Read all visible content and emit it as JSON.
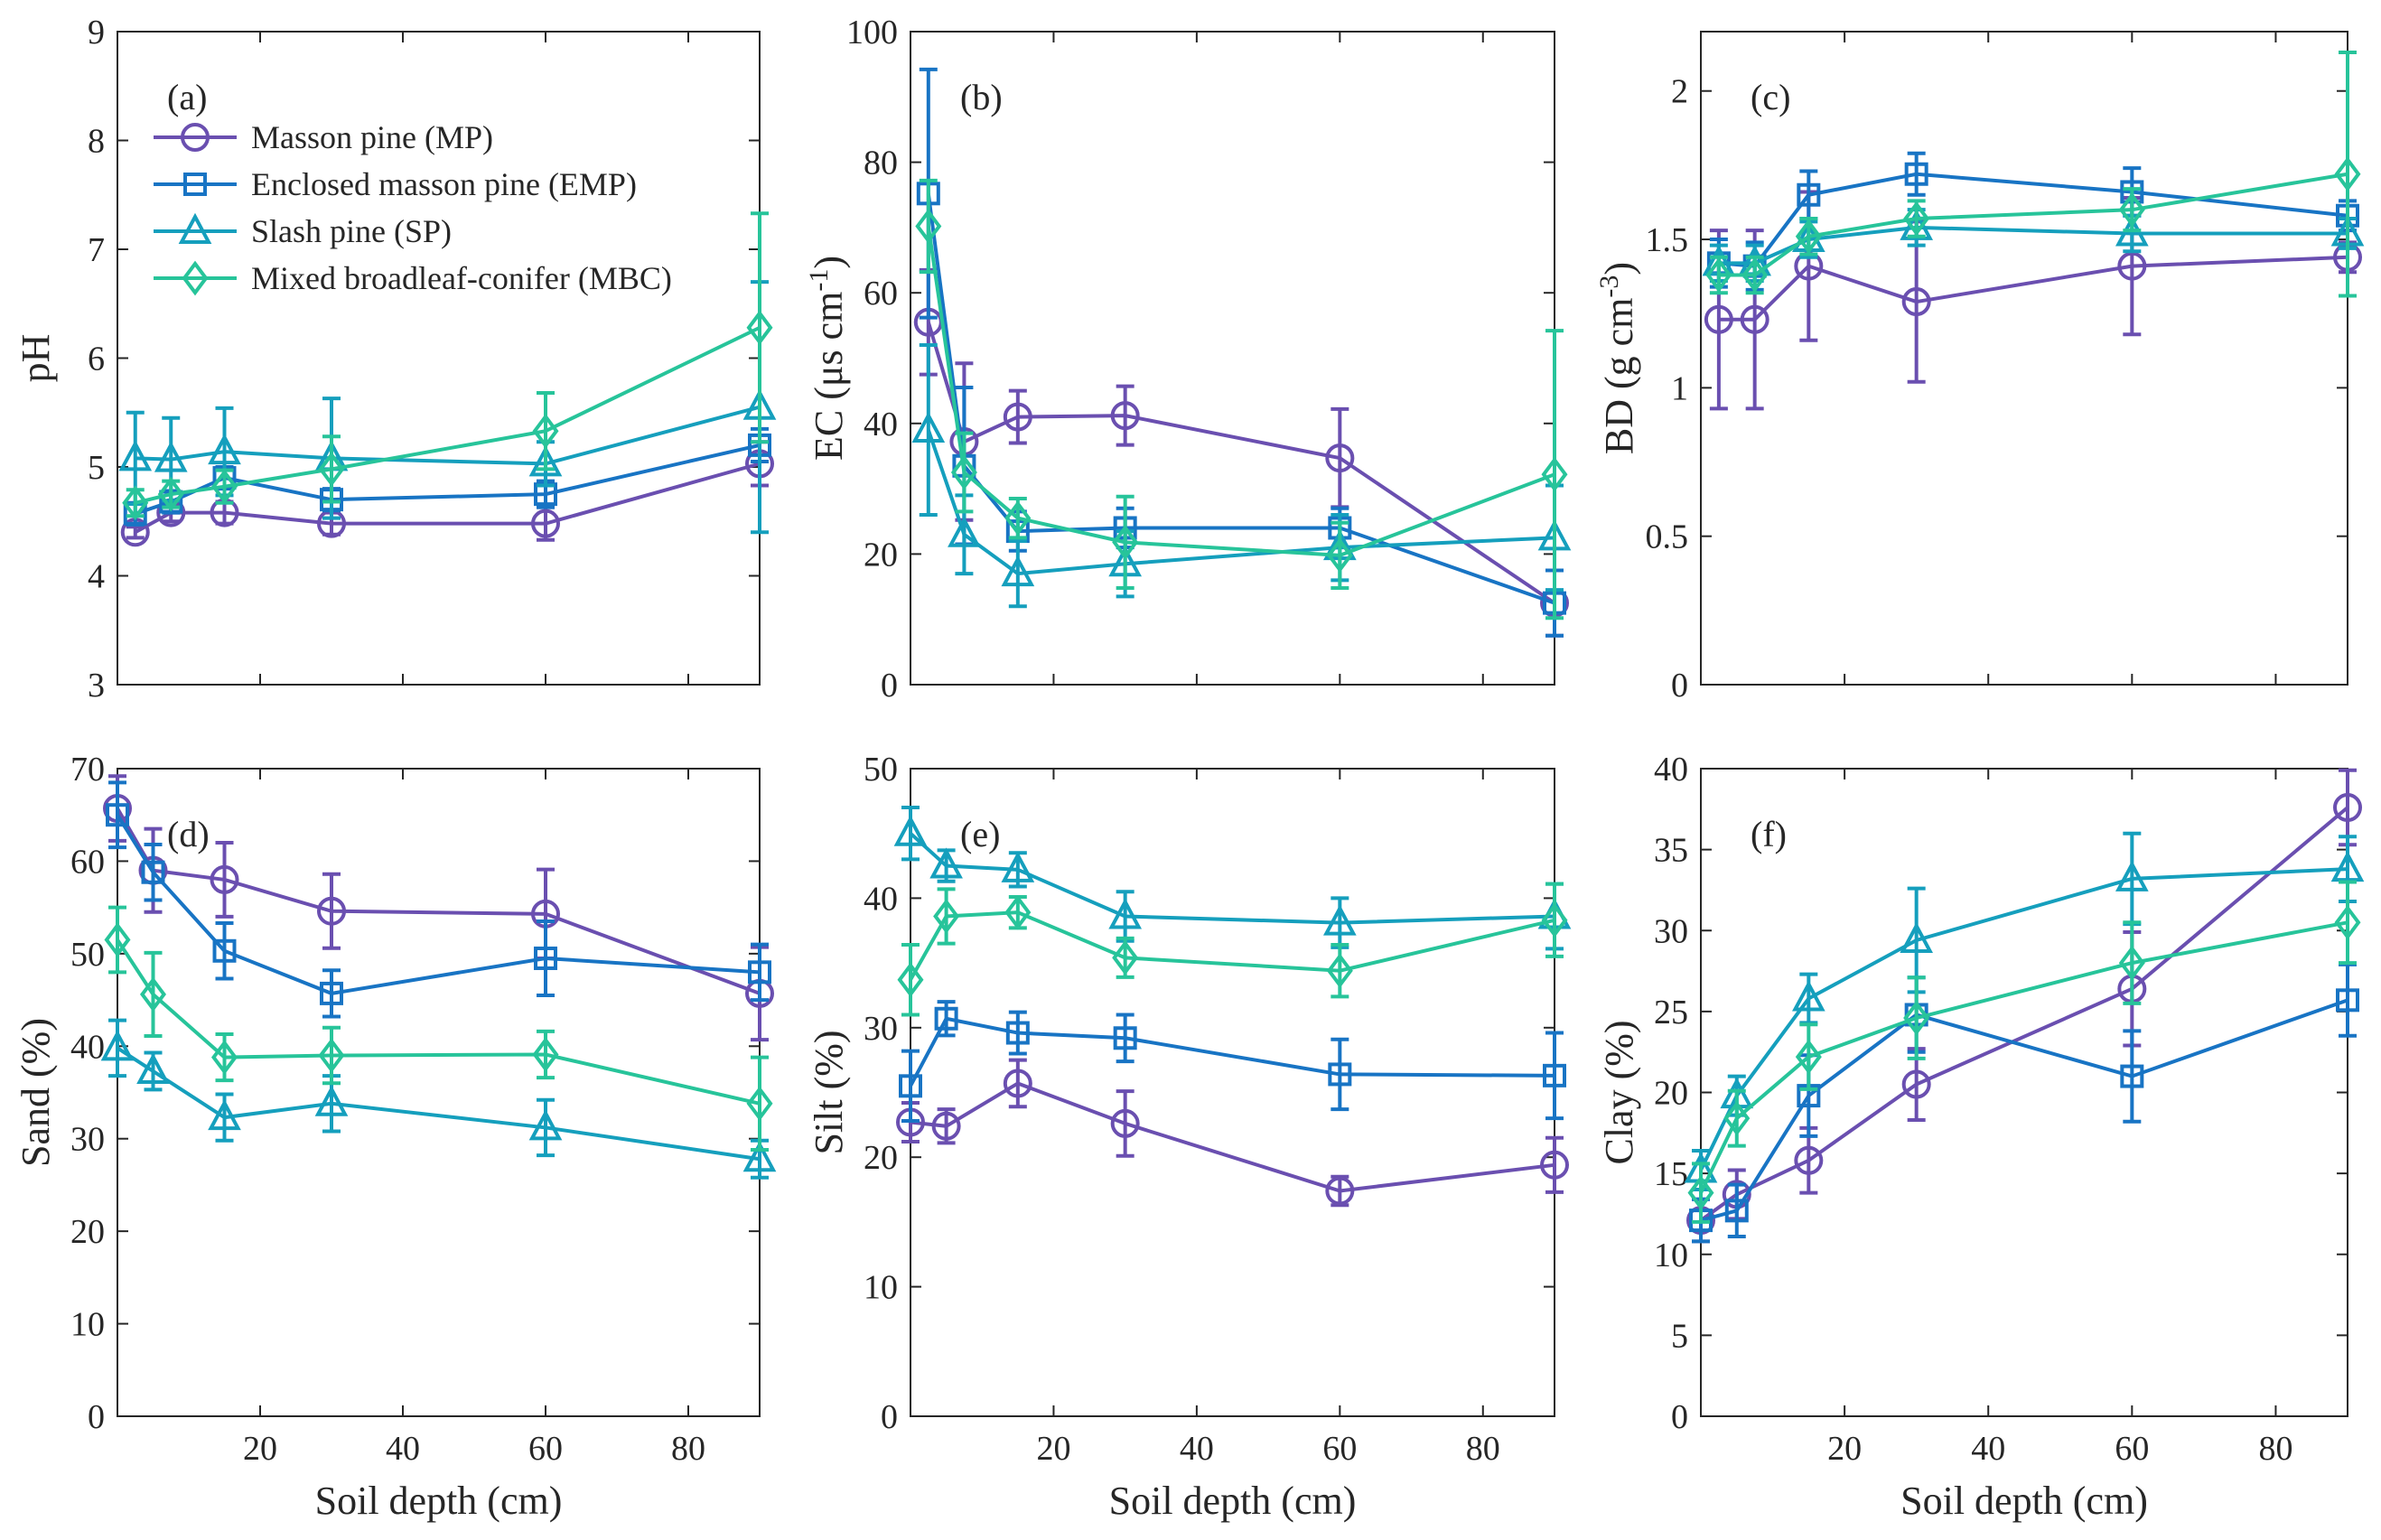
{
  "figure": {
    "xlabel": "Soil depth (cm)",
    "colors": {
      "MP": "#6a4fb0",
      "EMP": "#1874c4",
      "SP": "#159fbd",
      "MBC": "#27c49a"
    },
    "legend": [
      {
        "key": "MP",
        "label": "Masson pine (MP)",
        "marker": "circle"
      },
      {
        "key": "EMP",
        "label": "Enclosed masson pine (EMP)",
        "marker": "square"
      },
      {
        "key": "SP",
        "label": "Slash pine (SP)",
        "marker": "triangle"
      },
      {
        "key": "MBC",
        "label": "Mixed broadleaf-conifer (MBC)",
        "marker": "diamond"
      }
    ]
  },
  "chart_data": [
    {
      "panel": "(a)",
      "type": "line",
      "ylabel": "pH",
      "ylabel_sup": "",
      "ylabel_tail": "",
      "xlim": [
        0,
        90
      ],
      "ylim": [
        3,
        9
      ],
      "xticks": [
        20,
        40,
        60,
        80
      ],
      "xtick_labels": [
        "",
        "",
        "",
        ""
      ],
      "yticks": [
        3,
        4,
        5,
        6,
        7,
        8,
        9
      ],
      "ytick_labels": [
        "3",
        "4",
        "5",
        "6",
        "7",
        "8",
        "9"
      ],
      "series": [
        {
          "key": "MP",
          "x": [
            2.5,
            7.5,
            15,
            30,
            60,
            90
          ],
          "y": [
            4.4,
            4.58,
            4.58,
            4.48,
            4.48,
            5.03
          ],
          "err": [
            0.05,
            0.08,
            0.1,
            0.1,
            0.15,
            0.2
          ]
        },
        {
          "key": "EMP",
          "x": [
            2.5,
            7.5,
            15,
            30,
            60,
            90
          ],
          "y": [
            4.57,
            4.68,
            4.9,
            4.7,
            4.75,
            5.2
          ],
          "err": [
            0.1,
            0.1,
            0.1,
            0.1,
            0.12,
            0.15
          ]
        },
        {
          "key": "SP",
          "x": [
            2.5,
            7.5,
            15,
            30,
            60,
            90
          ],
          "y": [
            5.08,
            5.07,
            5.14,
            5.08,
            5.03,
            5.55
          ],
          "err": [
            0.42,
            0.38,
            0.4,
            0.55,
            0.2,
            1.15
          ]
        },
        {
          "key": "MBC",
          "x": [
            2.5,
            7.5,
            15,
            30,
            60,
            90
          ],
          "y": [
            4.67,
            4.75,
            4.82,
            4.98,
            5.33,
            6.28
          ],
          "err": [
            0.12,
            0.12,
            0.15,
            0.3,
            0.35,
            1.05
          ]
        }
      ]
    },
    {
      "panel": "(b)",
      "type": "line",
      "ylabel": "EC (μs cm",
      "ylabel_sup": "-1",
      "ylabel_tail": ")",
      "xlim": [
        0,
        90
      ],
      "ylim": [
        0,
        100
      ],
      "xticks": [
        20,
        40,
        60,
        80
      ],
      "xtick_labels": [
        "",
        "",
        "",
        ""
      ],
      "yticks": [
        0,
        20,
        40,
        60,
        80,
        100
      ],
      "ytick_labels": [
        "0",
        "20",
        "40",
        "60",
        "80",
        "100"
      ],
      "series": [
        {
          "key": "MP",
          "x": [
            2.5,
            7.5,
            15,
            30,
            60,
            90
          ],
          "y": [
            55.5,
            37.2,
            41,
            41.2,
            34.7,
            12.5
          ],
          "err": [
            8,
            12,
            4,
            4.5,
            7.5,
            5
          ]
        },
        {
          "key": "EMP",
          "x": [
            2.5,
            7.5,
            15,
            30,
            60,
            90
          ],
          "y": [
            75.2,
            33.5,
            23.5,
            24,
            24,
            12.5
          ],
          "err": [
            19,
            12,
            3,
            3,
            3,
            5
          ]
        },
        {
          "key": "SP",
          "x": [
            2.5,
            7.5,
            15,
            30,
            60,
            90
          ],
          "y": [
            39,
            23,
            17,
            18.5,
            21,
            22.5
          ],
          "err": [
            13,
            6,
            5,
            5,
            5,
            8
          ]
        },
        {
          "key": "MBC",
          "x": [
            2.5,
            7.5,
            15,
            30,
            60,
            90
          ],
          "y": [
            70.2,
            32.5,
            25.5,
            21.8,
            19.8,
            32.2
          ],
          "err": [
            7,
            6,
            3,
            7,
            5,
            22
          ]
        }
      ]
    },
    {
      "panel": "(c)",
      "type": "line",
      "ylabel": "BD (g cm",
      "ylabel_sup": "-3",
      "ylabel_tail": ")",
      "xlim": [
        0,
        90
      ],
      "ylim": [
        0,
        2.2
      ],
      "xticks": [
        20,
        40,
        60,
        80
      ],
      "xtick_labels": [
        "",
        "",
        "",
        ""
      ],
      "yticks": [
        0,
        0.5,
        1,
        1.5,
        2
      ],
      "ytick_labels": [
        "0",
        "0.5",
        "1",
        "1.5",
        "2"
      ],
      "series": [
        {
          "key": "MP",
          "x": [
            2.5,
            7.5,
            15,
            30,
            60,
            90
          ],
          "y": [
            1.23,
            1.23,
            1.41,
            1.29,
            1.41,
            1.44
          ],
          "err": [
            0.3,
            0.3,
            0.25,
            0.27,
            0.23,
            0.05
          ]
        },
        {
          "key": "EMP",
          "x": [
            2.5,
            7.5,
            15,
            30,
            60,
            90
          ],
          "y": [
            1.42,
            1.41,
            1.65,
            1.72,
            1.66,
            1.58
          ],
          "err": [
            0.08,
            0.08,
            0.08,
            0.07,
            0.08,
            0.05
          ]
        },
        {
          "key": "SP",
          "x": [
            2.5,
            7.5,
            15,
            30,
            60,
            90
          ],
          "y": [
            1.42,
            1.42,
            1.5,
            1.54,
            1.52,
            1.52
          ],
          "err": [
            0.06,
            0.06,
            0.06,
            0.06,
            0.06,
            0.05
          ]
        },
        {
          "key": "MBC",
          "x": [
            2.5,
            7.5,
            15,
            30,
            60,
            90
          ],
          "y": [
            1.38,
            1.38,
            1.51,
            1.57,
            1.6,
            1.72
          ],
          "err": [
            0.06,
            0.06,
            0.06,
            0.06,
            0.07,
            0.41
          ]
        }
      ]
    },
    {
      "panel": "(d)",
      "type": "line",
      "ylabel": "Sand (%)",
      "ylabel_sup": "",
      "ylabel_tail": "",
      "xlim": [
        0,
        90
      ],
      "ylim": [
        0,
        70
      ],
      "xticks": [
        20,
        40,
        60,
        80
      ],
      "xtick_labels": [
        "20",
        "40",
        "60",
        "80"
      ],
      "yticks": [
        0,
        10,
        20,
        30,
        40,
        50,
        60,
        70
      ],
      "ytick_labels": [
        "0",
        "10",
        "20",
        "30",
        "40",
        "50",
        "60",
        "70"
      ],
      "series": [
        {
          "key": "MP",
          "x": [
            0,
            5,
            15,
            30,
            60,
            90
          ],
          "y": [
            65.7,
            59,
            58,
            54.6,
            54.3,
            45.7
          ],
          "err": [
            3.5,
            4.5,
            4,
            4,
            4.8,
            5
          ]
        },
        {
          "key": "EMP",
          "x": [
            0,
            5,
            15,
            30,
            60,
            90
          ],
          "y": [
            65,
            58.8,
            50.3,
            45.7,
            49.5,
            48
          ],
          "err": [
            3.5,
            3,
            3,
            2.5,
            4,
            3
          ]
        },
        {
          "key": "SP",
          "x": [
            0,
            5,
            15,
            30,
            60,
            90
          ],
          "y": [
            39.8,
            37.3,
            32.3,
            33.8,
            31.2,
            27.8
          ],
          "err": [
            3,
            2,
            2.5,
            3,
            3,
            2
          ]
        },
        {
          "key": "MBC",
          "x": [
            0,
            5,
            15,
            30,
            60,
            90
          ],
          "y": [
            51.5,
            45.6,
            38.8,
            39,
            39.1,
            33.8
          ],
          "err": [
            3.5,
            4.5,
            2.5,
            3,
            2.5,
            5
          ]
        }
      ]
    },
    {
      "panel": "(e)",
      "type": "line",
      "ylabel": "Silt (%)",
      "ylabel_sup": "",
      "ylabel_tail": "",
      "xlim": [
        0,
        90
      ],
      "ylim": [
        0,
        50
      ],
      "xticks": [
        20,
        40,
        60,
        80
      ],
      "xtick_labels": [
        "20",
        "40",
        "60",
        "80"
      ],
      "yticks": [
        0,
        10,
        20,
        30,
        40,
        50
      ],
      "ytick_labels": [
        "0",
        "10",
        "20",
        "30",
        "40",
        "50"
      ],
      "series": [
        {
          "key": "MP",
          "x": [
            0,
            5,
            15,
            30,
            60,
            90
          ],
          "y": [
            22.7,
            22.4,
            25.7,
            22.6,
            17.4,
            19.4
          ],
          "err": [
            1.5,
            1.3,
            1.8,
            2.5,
            1.1,
            2.1
          ]
        },
        {
          "key": "EMP",
          "x": [
            0,
            5,
            15,
            30,
            60,
            90
          ],
          "y": [
            25.5,
            30.7,
            29.6,
            29.2,
            26.4,
            26.3
          ],
          "err": [
            2.7,
            1.3,
            1.6,
            1.8,
            2.7,
            3.3
          ]
        },
        {
          "key": "SP",
          "x": [
            0,
            5,
            15,
            30,
            60,
            90
          ],
          "y": [
            45,
            42.5,
            42.2,
            38.6,
            38.1,
            38.6
          ],
          "err": [
            2,
            1.2,
            1.3,
            1.9,
            1.9,
            2.5
          ]
        },
        {
          "key": "MBC",
          "x": [
            0,
            5,
            15,
            30,
            60,
            90
          ],
          "y": [
            33.7,
            38.6,
            38.9,
            35.4,
            34.4,
            38.3
          ],
          "err": [
            2.7,
            2.1,
            1.2,
            1.5,
            2,
            2.8
          ]
        }
      ]
    },
    {
      "panel": "(f)",
      "type": "line",
      "ylabel": "Clay (%)",
      "ylabel_sup": "",
      "ylabel_tail": "",
      "xlim": [
        0,
        90
      ],
      "ylim": [
        0,
        40
      ],
      "xticks": [
        20,
        40,
        60,
        80
      ],
      "xtick_labels": [
        "20",
        "40",
        "60",
        "80"
      ],
      "yticks": [
        0,
        5,
        10,
        15,
        20,
        25,
        30,
        35,
        40
      ],
      "ytick_labels": [
        "0",
        "5",
        "10",
        "15",
        "20",
        "25",
        "30",
        "35",
        "40"
      ],
      "series": [
        {
          "key": "MP",
          "x": [
            0,
            5,
            15,
            30,
            60,
            90
          ],
          "y": [
            12.1,
            13.7,
            15.8,
            20.5,
            26.4,
            37.6
          ],
          "err": [
            1.3,
            1.5,
            2,
            2.2,
            3.5,
            2.3
          ]
        },
        {
          "key": "EMP",
          "x": [
            0,
            5,
            15,
            30,
            60,
            90
          ],
          "y": [
            12.1,
            12.7,
            19.8,
            24.8,
            21,
            25.7
          ],
          "err": [
            1.3,
            1.6,
            2.5,
            2.3,
            2.8,
            2.2
          ]
        },
        {
          "key": "SP",
          "x": [
            0,
            5,
            15,
            30,
            60,
            90
          ],
          "y": [
            15.2,
            19.8,
            25.8,
            29.4,
            33.2,
            33.8
          ],
          "err": [
            1.2,
            1.2,
            1.5,
            3.2,
            2.8,
            2
          ]
        },
        {
          "key": "MBC",
          "x": [
            0,
            5,
            15,
            30,
            60,
            90
          ],
          "y": [
            13.8,
            18.4,
            22.2,
            24.6,
            28,
            30.5
          ],
          "err": [
            1.8,
            1.7,
            2,
            2.5,
            2.5,
            2.5
          ]
        }
      ]
    }
  ]
}
